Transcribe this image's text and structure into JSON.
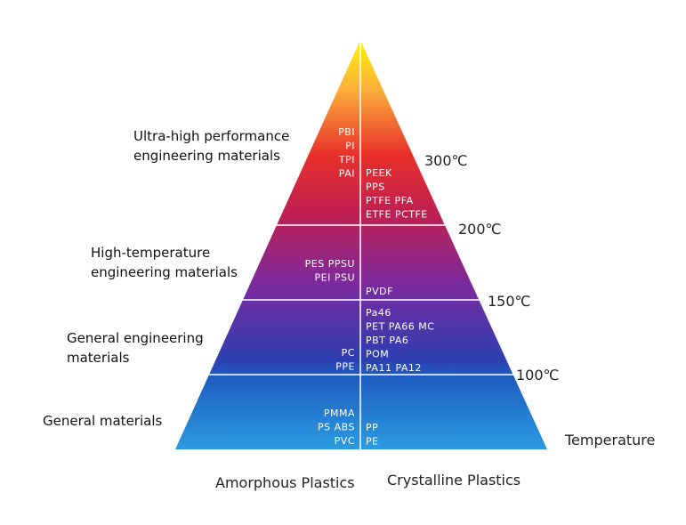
{
  "tiers": [
    {
      "label": [
        "Ultra-high performance",
        "engineering materials"
      ],
      "amorphous": [
        "PBI",
        "PI",
        "TPI",
        "PAI"
      ],
      "crystalline": [
        "PEEK",
        "PPS",
        "PTFE PFA",
        "ETFE PCTFE"
      ],
      "temperature": "300℃"
    },
    {
      "label": [
        "High-temperature",
        "engineering materials"
      ],
      "amorphous": [
        "PES PPSU",
        "PEI PSU"
      ],
      "crystalline": [
        "PVDF"
      ],
      "temperature": "200℃"
    },
    {
      "label": [
        "General engineering",
        "materials"
      ],
      "amorphous": [
        "PC",
        "PPE"
      ],
      "crystalline": [
        "Pa46",
        "PET PA66 MC",
        "PBT PA6",
        "POM",
        "PA11 PA12"
      ],
      "temperature": "150℃"
    },
    {
      "label": [
        "General materials"
      ],
      "amorphous": [
        "PMMA",
        "PS ABS",
        "PVC"
      ],
      "crystalline": [
        "PP",
        "PE"
      ],
      "temperature": "100℃"
    }
  ],
  "axis": {
    "temperature": "Temperature",
    "amorphous": "Amorphous Plastics",
    "crystalline": "Crystalline Plastics"
  }
}
